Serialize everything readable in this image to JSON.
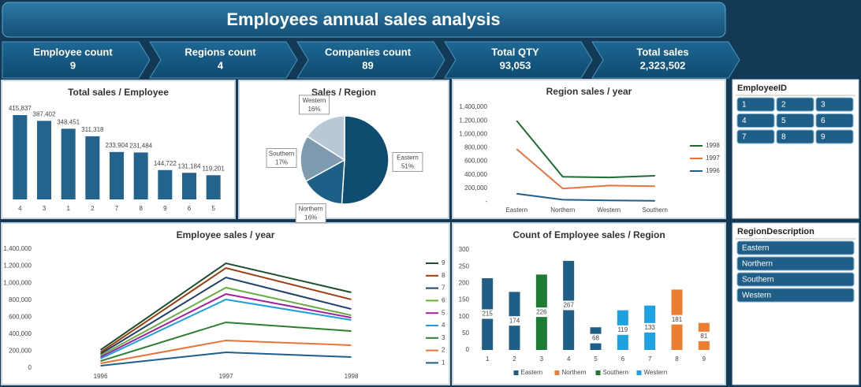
{
  "title": "Employees annual sales analysis",
  "kpis": [
    {
      "label": "Employee count",
      "value": "9"
    },
    {
      "label": "Regions count",
      "value": "4"
    },
    {
      "label": "Companies count",
      "value": "89"
    },
    {
      "label": "Total QTY",
      "value": "93,053"
    },
    {
      "label": "Total sales",
      "value": "2,323,502"
    }
  ],
  "chart_data": [
    {
      "type": "bar",
      "title": "Total sales / Employee",
      "categories": [
        "4",
        "3",
        "1",
        "2",
        "7",
        "8",
        "9",
        "6",
        "5"
      ],
      "values": [
        415837,
        387402,
        348451,
        311318,
        233904,
        231484,
        144722,
        131184,
        119201
      ],
      "value_labels": [
        "415,837",
        "387,402",
        "348,451",
        "311,318",
        "233,904",
        "231,484",
        "144,722",
        "131,184",
        "119,201"
      ],
      "color": "#23648e"
    },
    {
      "type": "pie",
      "title": "Sales / Region",
      "categories": [
        "Eastern",
        "Northern",
        "Southern",
        "Western"
      ],
      "values": [
        51,
        16,
        17,
        16
      ],
      "value_labels": [
        "51%",
        "16%",
        "17%",
        "16%"
      ],
      "colors": [
        "#0e4d6f",
        "#1d5f86",
        "#7f9bb0",
        "#b9c8d4"
      ]
    },
    {
      "type": "line",
      "title": "Region sales / year",
      "categories": [
        "Eastern",
        "Northern",
        "Western",
        "Southern"
      ],
      "ylim": [
        0,
        1400000
      ],
      "yticks": [
        {
          "value": 0,
          "label": "-"
        },
        {
          "value": 200000,
          "label": "200,000"
        },
        {
          "value": 400000,
          "label": "400,000"
        },
        {
          "value": 600000,
          "label": "600,000"
        },
        {
          "value": 800000,
          "label": "800,000"
        },
        {
          "value": 1000000,
          "label": "1,000,000"
        },
        {
          "value": 1200000,
          "label": "1,200,000"
        },
        {
          "value": 1400000,
          "label": "1,400,000"
        }
      ],
      "series": [
        {
          "name": "1998",
          "color": "#1e6b34",
          "values": [
            1200000,
            370000,
            360000,
            385000
          ]
        },
        {
          "name": "1997",
          "color": "#e8743b",
          "values": [
            780000,
            195000,
            240000,
            230000
          ]
        },
        {
          "name": "1996",
          "color": "#1f5f8b",
          "values": [
            120000,
            30000,
            20000,
            15000
          ]
        }
      ]
    },
    {
      "type": "line",
      "title": "Employee sales / year",
      "categories": [
        "1996",
        "1997",
        "1998"
      ],
      "ylim": [
        0,
        1400000
      ],
      "yticks": [
        0,
        {
          "value": 200000,
          "label": "200,000"
        },
        {
          "value": 400000,
          "label": "400,000"
        },
        {
          "value": 600000,
          "label": "600,000"
        },
        {
          "value": 800000,
          "label": "800,000"
        },
        {
          "value": 1000000,
          "label": "1,000,000"
        },
        {
          "value": 1200000,
          "label": "1,200,000"
        },
        {
          "value": 1400000,
          "label": "1,400,000"
        }
      ],
      "series": [
        {
          "name": "9",
          "color": "#1d4e2c",
          "values": [
            213000,
            1233000,
            890000
          ]
        },
        {
          "name": "8",
          "color": "#9c3d0e",
          "values": [
            185000,
            1177000,
            807000
          ]
        },
        {
          "name": "7",
          "color": "#1f3f6b",
          "values": [
            167000,
            1066000,
            695000
          ]
        },
        {
          "name": "6",
          "color": "#6aad45",
          "values": [
            148000,
            946000,
            621000
          ]
        },
        {
          "name": "5",
          "color": "#a020a0",
          "values": [
            130000,
            871000,
            593000
          ]
        },
        {
          "name": "4",
          "color": "#1a9fdb",
          "values": [
            111000,
            807000,
            566000
          ]
        },
        {
          "name": "3",
          "color": "#2e7d32",
          "values": [
            83000,
            538000,
            436000
          ]
        },
        {
          "name": "2",
          "color": "#e8743b",
          "values": [
            56000,
            325000,
            269000
          ]
        },
        {
          "name": "1",
          "color": "#1f5f8b",
          "values": [
            28000,
            185000,
            130000
          ]
        }
      ]
    },
    {
      "type": "bar",
      "title": "Count of Employee sales / Region",
      "categories": [
        "1",
        "2",
        "3",
        "4",
        "5",
        "6",
        "7",
        "8",
        "9"
      ],
      "ylim": [
        0,
        300
      ],
      "yticks": [
        0,
        50,
        100,
        150,
        200,
        250,
        300
      ],
      "series": [
        {
          "name": "Eastern",
          "color": "#1f5f87",
          "values": [
            215,
            174,
            null,
            267,
            68,
            null,
            null,
            null,
            null
          ]
        },
        {
          "name": "Northern",
          "color": "#ed7d31",
          "values": [
            null,
            null,
            null,
            null,
            null,
            null,
            null,
            181,
            81
          ]
        },
        {
          "name": "Southern",
          "color": "#1e7b34",
          "values": [
            null,
            null,
            226,
            null,
            null,
            null,
            null,
            null,
            null
          ]
        },
        {
          "name": "Western",
          "color": "#1ea1e0",
          "values": [
            null,
            null,
            null,
            null,
            null,
            119,
            133,
            null,
            null
          ]
        }
      ]
    }
  ],
  "slicers": [
    {
      "title": "EmployeeID",
      "items": [
        "1",
        "2",
        "3",
        "4",
        "5",
        "6",
        "7",
        "8",
        "9"
      ]
    },
    {
      "title": "RegionDescription",
      "items": [
        "Eastern",
        "Northern",
        "Southern",
        "Western"
      ]
    }
  ]
}
